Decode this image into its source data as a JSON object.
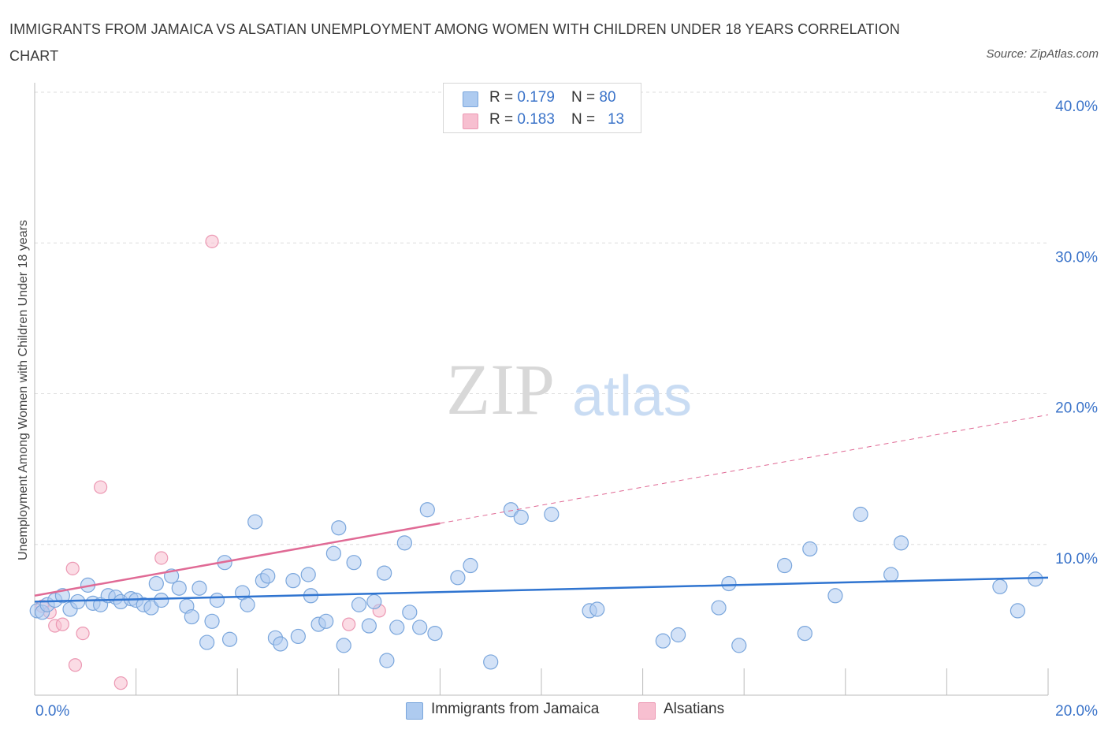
{
  "title": "IMMIGRANTS FROM JAMAICA VS ALSATIAN UNEMPLOYMENT AMONG WOMEN WITH CHILDREN UNDER 18 YEARS CORRELATION CHART",
  "source": "Source: ZipAtlas.com",
  "watermark": {
    "zip": "ZIP",
    "atlas": "atlas"
  },
  "legend": {
    "rows": [
      {
        "r_label": "R = ",
        "r_value": "0.179",
        "n_label": "N = ",
        "n_value": "80"
      },
      {
        "r_label": "R = ",
        "r_value": "0.183",
        "n_label": "N = ",
        "n_value": "13"
      }
    ]
  },
  "colors": {
    "blue_fill": "#aecbf0",
    "blue_stroke": "#7aa6dc",
    "blue_line": "#2f74d0",
    "pink_fill": "#f7bfd0",
    "pink_stroke": "#ec98b3",
    "pink_line": "#e06a95",
    "tick_label": "#3a73c9",
    "grid": "#dddddd"
  },
  "chart_data": {
    "type": "scatter",
    "title": "IMMIGRANTS FROM JAMAICA VS ALSATIAN UNEMPLOYMENT AMONG WOMEN WITH CHILDREN UNDER 18 YEARS CORRELATION CHART",
    "xlabel": "",
    "ylabel": "Unemployment Among Women with Children Under 18 years",
    "xlim": [
      0,
      20
    ],
    "ylim": [
      0,
      40
    ],
    "x_tick_labels": [
      "0.0%",
      "20.0%"
    ],
    "y_ticks": [
      10,
      20,
      30,
      40
    ],
    "y_tick_labels": [
      "10.0%",
      "20.0%",
      "30.0%",
      "40.0%"
    ],
    "grid": true,
    "legend_position": "top-center",
    "series": [
      {
        "name": "Immigrants from Jamaica",
        "color": "blue",
        "points": [
          [
            0.05,
            5.6
          ],
          [
            0.15,
            5.5
          ],
          [
            0.25,
            6.0
          ],
          [
            0.4,
            6.3
          ],
          [
            0.55,
            6.6
          ],
          [
            0.7,
            5.7
          ],
          [
            0.85,
            6.2
          ],
          [
            1.05,
            7.3
          ],
          [
            1.15,
            6.1
          ],
          [
            1.3,
            6.0
          ],
          [
            1.45,
            6.6
          ],
          [
            1.6,
            6.5
          ],
          [
            1.7,
            6.2
          ],
          [
            1.9,
            6.4
          ],
          [
            2.0,
            6.3
          ],
          [
            2.15,
            6.0
          ],
          [
            2.3,
            5.8
          ],
          [
            2.4,
            7.4
          ],
          [
            2.5,
            6.3
          ],
          [
            2.7,
            7.9
          ],
          [
            2.85,
            7.1
          ],
          [
            3.0,
            5.9
          ],
          [
            3.1,
            5.2
          ],
          [
            3.25,
            7.1
          ],
          [
            3.4,
            3.5
          ],
          [
            3.5,
            4.9
          ],
          [
            3.6,
            6.3
          ],
          [
            3.75,
            8.8
          ],
          [
            3.85,
            3.7
          ],
          [
            4.1,
            6.8
          ],
          [
            4.2,
            6.0
          ],
          [
            4.35,
            11.5
          ],
          [
            4.5,
            7.6
          ],
          [
            4.6,
            7.9
          ],
          [
            4.75,
            3.8
          ],
          [
            4.85,
            3.4
          ],
          [
            5.1,
            7.6
          ],
          [
            5.2,
            3.9
          ],
          [
            5.4,
            8.0
          ],
          [
            5.45,
            6.6
          ],
          [
            5.6,
            4.7
          ],
          [
            5.75,
            4.9
          ],
          [
            5.9,
            9.4
          ],
          [
            6.0,
            11.1
          ],
          [
            6.1,
            3.3
          ],
          [
            6.3,
            8.8
          ],
          [
            6.4,
            6.0
          ],
          [
            6.6,
            4.6
          ],
          [
            6.7,
            6.2
          ],
          [
            6.9,
            8.1
          ],
          [
            6.95,
            2.3
          ],
          [
            7.15,
            4.5
          ],
          [
            7.3,
            10.1
          ],
          [
            7.4,
            5.5
          ],
          [
            7.6,
            4.5
          ],
          [
            7.75,
            12.3
          ],
          [
            7.9,
            4.1
          ],
          [
            8.35,
            7.8
          ],
          [
            8.6,
            8.6
          ],
          [
            9.0,
            2.2
          ],
          [
            9.4,
            12.3
          ],
          [
            9.6,
            11.8
          ],
          [
            10.2,
            12.0
          ],
          [
            10.95,
            5.6
          ],
          [
            11.1,
            5.7
          ],
          [
            12.4,
            3.6
          ],
          [
            12.7,
            4.0
          ],
          [
            13.5,
            5.8
          ],
          [
            13.7,
            7.4
          ],
          [
            13.9,
            3.3
          ],
          [
            14.8,
            8.6
          ],
          [
            15.2,
            4.1
          ],
          [
            15.3,
            9.7
          ],
          [
            15.8,
            6.6
          ],
          [
            16.3,
            12.0
          ],
          [
            16.9,
            8.0
          ],
          [
            17.1,
            10.1
          ],
          [
            19.05,
            7.2
          ],
          [
            19.4,
            5.6
          ],
          [
            19.75,
            7.7
          ]
        ],
        "trend": {
          "x": [
            0,
            20
          ],
          "y": [
            6.2,
            7.8
          ]
        }
      },
      {
        "name": "Alsatians",
        "color": "pink",
        "points": [
          [
            0.15,
            5.9
          ],
          [
            0.4,
            4.6
          ],
          [
            0.55,
            4.7
          ],
          [
            0.75,
            8.4
          ],
          [
            0.8,
            2.0
          ],
          [
            0.95,
            4.1
          ],
          [
            1.3,
            13.8
          ],
          [
            1.7,
            0.8
          ],
          [
            2.5,
            9.1
          ],
          [
            3.5,
            30.1
          ],
          [
            6.2,
            4.7
          ],
          [
            6.8,
            5.6
          ],
          [
            0.3,
            5.5
          ]
        ],
        "trend_solid": {
          "x": [
            0,
            8.0
          ],
          "y": [
            6.6,
            11.4
          ]
        },
        "trend_dashed": {
          "x": [
            8.0,
            20
          ],
          "y": [
            11.4,
            18.6
          ]
        }
      }
    ]
  },
  "bottom_legend": [
    {
      "label": "Immigrants from Jamaica"
    },
    {
      "label": "Alsatians"
    }
  ]
}
